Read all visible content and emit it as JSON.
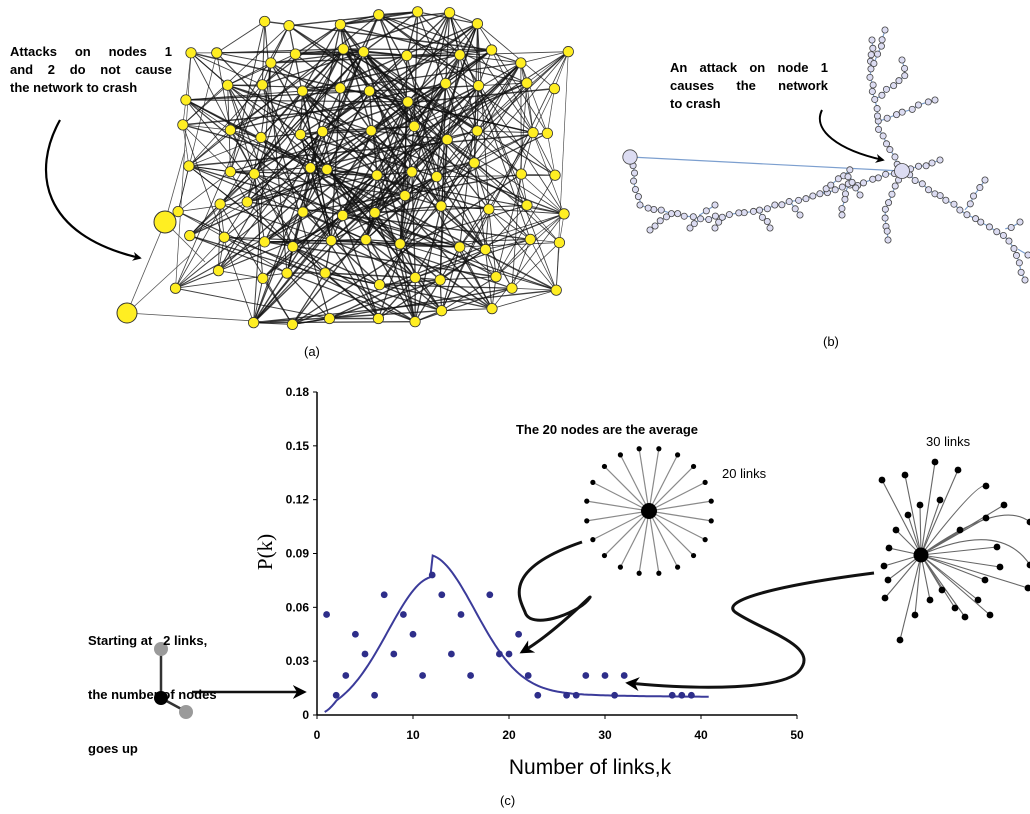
{
  "panel_a": {
    "caption": "(a)",
    "annotation": [
      "Attacks on nodes 1",
      "and 2 do not cause",
      "the network to crash"
    ],
    "node_color": "#ffee22"
  },
  "panel_b": {
    "caption": "(b)",
    "annotation": [
      "An attack on node 1",
      "causes the network",
      "to crash"
    ],
    "node_color": "#dcdcf2",
    "edge_color": "#7c9fcf"
  },
  "panel_c": {
    "caption": "(c)",
    "average_label": "The 20 nodes are the average",
    "star20_label": "20 links",
    "star30_label": "30 links",
    "start_annotation": [
      "Starting at   2 links,",
      "the number of nodes",
      "goes up"
    ],
    "chart_data": {
      "type": "scatter",
      "xlabel": "Number of links,k",
      "ylabel": "P(k)",
      "xlim": [
        0,
        50
      ],
      "ylim": [
        0,
        0.18
      ],
      "x_ticks": [
        "0",
        "10",
        "20",
        "30",
        "40",
        "50"
      ],
      "y_ticks": [
        "0",
        "0.03",
        "0.06",
        "0.09",
        "0.12",
        "0.15",
        "0.18"
      ],
      "point_color": "#2e2e8a",
      "curve_color": "#3b3b9a",
      "points": [
        {
          "x": 1,
          "y": 0.056
        },
        {
          "x": 2,
          "y": 0.011
        },
        {
          "x": 3,
          "y": 0.022
        },
        {
          "x": 4,
          "y": 0.045
        },
        {
          "x": 5,
          "y": 0.034
        },
        {
          "x": 6,
          "y": 0.011
        },
        {
          "x": 7,
          "y": 0.067
        },
        {
          "x": 8,
          "y": 0.034
        },
        {
          "x": 9,
          "y": 0.056
        },
        {
          "x": 10,
          "y": 0.045
        },
        {
          "x": 11,
          "y": 0.022
        },
        {
          "x": 12,
          "y": 0.078
        },
        {
          "x": 13,
          "y": 0.067
        },
        {
          "x": 14,
          "y": 0.034
        },
        {
          "x": 15,
          "y": 0.056
        },
        {
          "x": 16,
          "y": 0.022
        },
        {
          "x": 18,
          "y": 0.067
        },
        {
          "x": 19,
          "y": 0.034
        },
        {
          "x": 20,
          "y": 0.034
        },
        {
          "x": 21,
          "y": 0.045
        },
        {
          "x": 22,
          "y": 0.022
        },
        {
          "x": 23,
          "y": 0.011
        },
        {
          "x": 26,
          "y": 0.011
        },
        {
          "x": 27,
          "y": 0.011
        },
        {
          "x": 28,
          "y": 0.022
        },
        {
          "x": 30,
          "y": 0.022
        },
        {
          "x": 31,
          "y": 0.011
        },
        {
          "x": 32,
          "y": 0.022
        },
        {
          "x": 37,
          "y": 0.011
        },
        {
          "x": 38,
          "y": 0.011
        },
        {
          "x": 39,
          "y": 0.011
        }
      ],
      "fit_curve": {
        "type": "gaussian_plus_tail",
        "peak_x": 12,
        "peak_y": 0.077,
        "sigma": 4.6,
        "baseline": 0.01,
        "x_start": 0.8,
        "x_end": 41
      }
    }
  }
}
